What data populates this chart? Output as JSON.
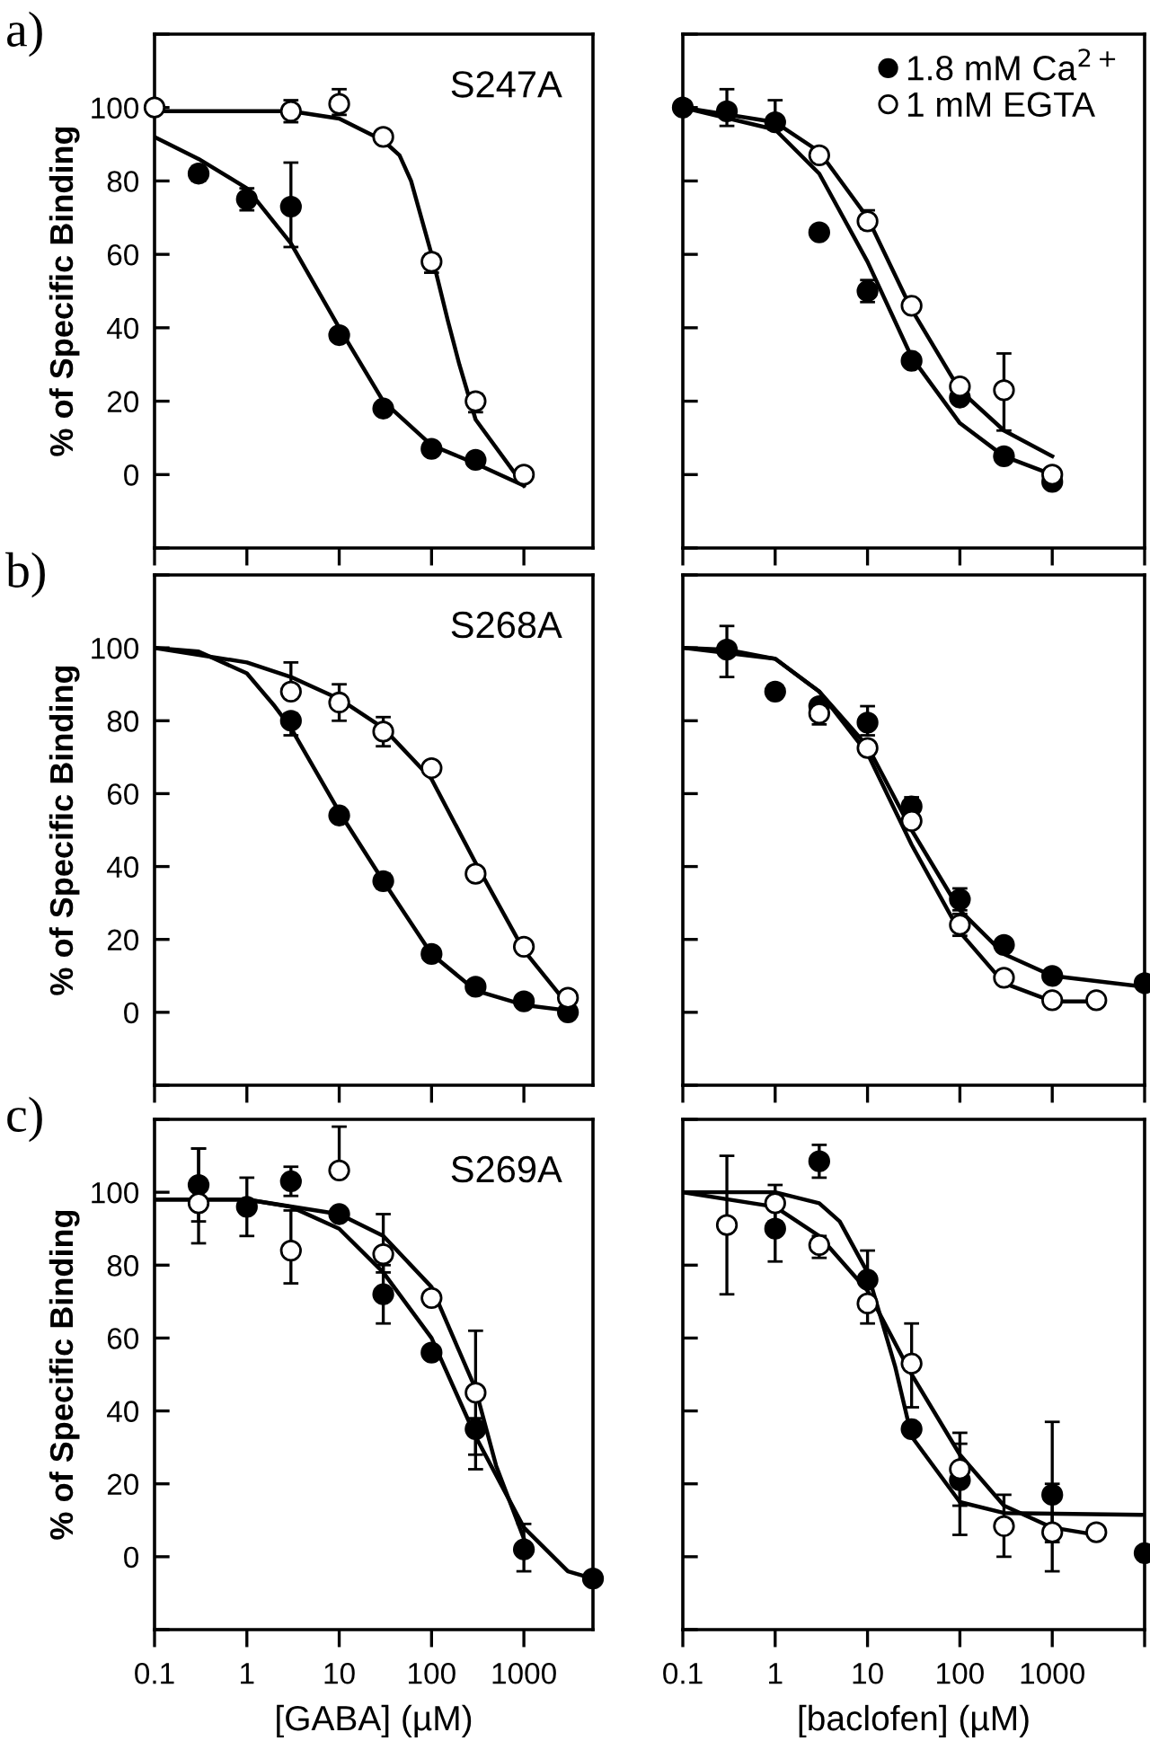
{
  "chart_data": [
    {
      "type": "scatter",
      "title": "S247A",
      "ylabel": "% of Specific Binding",
      "annotations": [
        "a)"
      ],
      "log": "x",
      "tick_labels": "y",
      "xlim": [
        0.1,
        5600
      ],
      "xticks": [
        {
          "value": 0.1,
          "label": null
        },
        {
          "value": 1,
          "label": null
        },
        {
          "value": 10,
          "label": null
        },
        {
          "value": 100,
          "label": null
        },
        {
          "value": 1000,
          "label": null
        }
      ],
      "ylim": [
        -20,
        120
      ],
      "yticks": [
        {
          "value": -20,
          "label": null
        },
        0,
        20,
        40,
        60,
        80,
        100,
        {
          "value": 120,
          "label": null
        }
      ],
      "series": [
        {
          "type": "line",
          "color": "#000000",
          "x": [
            0.1,
            0.3,
            1,
            3,
            10,
            30,
            100,
            300,
            1000
          ],
          "values": [
            92,
            86,
            78,
            63,
            40,
            20,
            8,
            3,
            -3
          ]
        },
        {
          "type": "line",
          "color": "#000000",
          "x": [
            0.1,
            1,
            3,
            10,
            30,
            45,
            60,
            100,
            150,
            200,
            300,
            1000
          ],
          "values": [
            99,
            99,
            99,
            97,
            91,
            87,
            80,
            60,
            42,
            30,
            15,
            -3
          ]
        },
        {
          "marker": "circle",
          "color": "#000000",
          "x": [
            0.3,
            1,
            3,
            10,
            30,
            100,
            300
          ],
          "values": [
            82,
            75,
            73,
            38,
            18,
            7,
            4
          ],
          "errors": [
            [
              80,
              84
            ],
            [
              72,
              78
            ],
            [
              62,
              85
            ],
            null,
            null,
            null,
            null
          ]
        },
        {
          "marker": "circle",
          "color": "#ffffff",
          "x": [
            0.1,
            3,
            10,
            30,
            100,
            300,
            1000
          ],
          "values": [
            100,
            99,
            101,
            92,
            58,
            20,
            0
          ],
          "errors": [
            null,
            [
              96,
              102
            ],
            [
              98,
              105
            ],
            null,
            [
              55,
              60
            ],
            [
              17,
              22
            ],
            null
          ]
        }
      ]
    },
    {
      "type": "scatter",
      "legend": "top right",
      "log": "x",
      "tick_labels": false,
      "xlim": [
        0.1,
        10000
      ],
      "xticks": [
        {
          "value": 0.1,
          "label": null
        },
        {
          "value": 1,
          "label": null
        },
        {
          "value": 10,
          "label": null
        },
        {
          "value": 100,
          "label": null
        },
        {
          "value": 1000,
          "label": null
        },
        {
          "value": 10000,
          "label": null
        }
      ],
      "ylim": [
        -20,
        120
      ],
      "yticks": [
        {
          "value": -20,
          "label": null
        },
        {
          "value": 0,
          "label": null
        },
        {
          "value": 20,
          "label": null
        },
        {
          "value": 40,
          "label": null
        },
        {
          "value": 60,
          "label": null
        },
        {
          "value": 80,
          "label": null
        },
        {
          "value": 100,
          "label": null
        },
        {
          "value": 120,
          "label": null
        }
      ],
      "series": [
        {
          "type": "line",
          "color": "#000000",
          "x": [
            0.1,
            1,
            3,
            10,
            30,
            100,
            300,
            1000
          ],
          "values": [
            100,
            94,
            82,
            58,
            32,
            14,
            5,
            0
          ]
        },
        {
          "type": "line",
          "color": "#000000",
          "x": [
            0.1,
            1,
            3,
            10,
            30,
            100,
            300,
            1000
          ],
          "values": [
            100,
            96,
            88,
            70,
            45,
            23,
            12,
            5
          ]
        },
        {
          "marker": "circle",
          "name": "1.8 mM Ca$^{2+}$",
          "color": "#000000",
          "x": [
            0.1,
            0.3,
            1,
            3,
            10,
            30,
            100,
            300,
            1000
          ],
          "values": [
            100,
            99,
            96,
            66,
            50,
            31,
            21,
            5,
            -2
          ],
          "errors": [
            null,
            [
              95,
              105
            ],
            [
              94,
              102
            ],
            null,
            [
              47,
              53
            ],
            null,
            null,
            null,
            null
          ]
        },
        {
          "marker": "circle",
          "name": "1 mM EGTA",
          "color": "#ffffff",
          "x": [
            3,
            10,
            30,
            100,
            300,
            1000
          ],
          "values": [
            87,
            69,
            46,
            24,
            23,
            0
          ],
          "errors": [
            null,
            [
              67,
              72
            ],
            null,
            null,
            [
              12,
              33
            ],
            null
          ]
        }
      ]
    },
    {
      "type": "scatter",
      "title": "S268A",
      "ylabel": "% of Specific Binding",
      "annotations": [
        "b)"
      ],
      "log": "x",
      "tick_labels": "y",
      "xlim": [
        0.1,
        5600
      ],
      "xticks": [
        {
          "value": 0.1,
          "label": null
        },
        {
          "value": 1,
          "label": null
        },
        {
          "value": 10,
          "label": null
        },
        {
          "value": 100,
          "label": null
        },
        {
          "value": 1000,
          "label": null
        }
      ],
      "ylim": [
        -20,
        120
      ],
      "yticks": [
        {
          "value": -20,
          "label": null
        },
        0,
        20,
        40,
        60,
        80,
        100,
        {
          "value": 120,
          "label": null
        }
      ],
      "series": [
        {
          "type": "line",
          "color": "#000000",
          "x": [
            0.1,
            0.3,
            1,
            2,
            3,
            10,
            30,
            100,
            300,
            1000,
            3000
          ],
          "values": [
            100,
            99,
            93,
            84,
            78,
            55,
            36,
            16,
            6,
            2,
            0.5
          ]
        },
        {
          "type": "line",
          "color": "#000000",
          "x": [
            0.1,
            1,
            3,
            10,
            30,
            100,
            300,
            1000,
            3000
          ],
          "values": [
            100,
            96,
            92,
            86,
            78,
            64,
            41,
            17,
            2
          ]
        },
        {
          "marker": "circle",
          "color": "#000000",
          "x": [
            3,
            10,
            30,
            100,
            300,
            1000,
            3000
          ],
          "values": [
            80,
            54,
            36,
            16,
            7,
            3,
            0
          ],
          "errors": [
            [
              76,
              82
            ],
            null,
            [
              34,
              38
            ],
            null,
            null,
            null,
            null
          ]
        },
        {
          "marker": "circle",
          "color": "#ffffff",
          "x": [
            3,
            10,
            30,
            100,
            300,
            1000,
            3000
          ],
          "values": [
            88,
            85,
            77,
            67,
            38,
            18,
            4
          ],
          "errors": [
            [
              88,
              96
            ],
            [
              80,
              90
            ],
            [
              73,
              81
            ],
            null,
            null,
            null,
            null
          ]
        }
      ]
    },
    {
      "type": "scatter",
      "log": "x",
      "tick_labels": false,
      "xlim": [
        0.1,
        10000
      ],
      "xticks": [
        {
          "value": 0.1,
          "label": null
        },
        {
          "value": 1,
          "label": null
        },
        {
          "value": 10,
          "label": null
        },
        {
          "value": 100,
          "label": null
        },
        {
          "value": 1000,
          "label": null
        },
        {
          "value": 10000,
          "label": null
        }
      ],
      "ylim": [
        -20,
        120
      ],
      "yticks": [
        {
          "value": -20,
          "label": null
        },
        {
          "value": 0,
          "label": null
        },
        {
          "value": 20,
          "label": null
        },
        {
          "value": 40,
          "label": null
        },
        {
          "value": 60,
          "label": null
        },
        {
          "value": 80,
          "label": null
        },
        {
          "value": 100,
          "label": null
        },
        {
          "value": 120,
          "label": null
        }
      ],
      "series": [
        {
          "type": "line",
          "color": "#000000",
          "x": [
            0.1,
            0.3,
            1,
            3,
            10,
            30,
            100,
            300,
            1000,
            10000
          ],
          "values": [
            100,
            99.5,
            97,
            88,
            73,
            50,
            28,
            16,
            10,
            7
          ]
        },
        {
          "type": "line",
          "color": "#000000",
          "x": [
            0.1,
            1,
            3,
            10,
            30,
            100,
            300,
            1000,
            3000
          ],
          "values": [
            100,
            97,
            88,
            71,
            46,
            22,
            8,
            3,
            3
          ]
        },
        {
          "marker": "circle",
          "color": "#000000",
          "x": [
            0.3,
            1,
            3,
            10,
            30,
            100,
            300,
            1000,
            10000
          ],
          "values": [
            99.5,
            88,
            84,
            79.5,
            56.5,
            31,
            18.5,
            10,
            8
          ],
          "errors": [
            [
              92,
              106
            ],
            null,
            null,
            [
              76,
              84
            ],
            [
              54,
              59
            ],
            [
              28,
              34
            ],
            null,
            null,
            null
          ]
        },
        {
          "marker": "circle",
          "color": "#ffffff",
          "x": [
            3,
            10,
            30,
            100,
            300,
            1000,
            3000
          ],
          "values": [
            82,
            72.5,
            52.5,
            24,
            9.5,
            3.3,
            3.3
          ],
          "errors": [
            [
              79,
              85
            ],
            null,
            null,
            [
              21,
              27
            ],
            null,
            null,
            null
          ]
        }
      ]
    },
    {
      "type": "scatter",
      "title": "S269A",
      "xlabel": "[GABA] (µM)",
      "ylabel": "% of Specific Binding",
      "annotations": [
        "c)"
      ],
      "log": "x",
      "xlim": [
        0.1,
        5600
      ],
      "xticks": [
        0.1,
        1,
        10,
        100,
        1000
      ],
      "ylim": [
        -20,
        120
      ],
      "yticks": [
        {
          "value": -20,
          "label": null
        },
        0,
        20,
        40,
        60,
        80,
        100,
        {
          "value": 120,
          "label": null
        }
      ],
      "series": [
        {
          "type": "line",
          "color": "#000000",
          "x": [
            0.1,
            1,
            3,
            10,
            30,
            100,
            300,
            1000,
            3000,
            5600
          ],
          "values": [
            98,
            98,
            96,
            90,
            78,
            60,
            33,
            8,
            -4,
            -6
          ]
        },
        {
          "type": "line",
          "color": "#000000",
          "x": [
            0.1,
            1,
            10,
            30,
            100,
            300,
            500,
            1000
          ],
          "values": [
            98,
            98,
            94,
            88,
            74,
            46,
            25,
            5
          ]
        },
        {
          "marker": "circle",
          "color": "#000000",
          "x": [
            0.3,
            1,
            3,
            10,
            30,
            100,
            300,
            1000,
            5600
          ],
          "values": [
            102,
            96,
            103,
            94,
            72,
            56,
            35,
            2,
            -6
          ],
          "errors": [
            [
              92,
              112
            ],
            [
              88,
              104
            ],
            [
              99,
              107
            ],
            null,
            [
              64,
              80
            ],
            null,
            [
              24,
              38
            ],
            [
              -4,
              9
            ],
            null
          ]
        },
        {
          "marker": "circle",
          "color": "#ffffff",
          "x": [
            0.3,
            3,
            10,
            30,
            100,
            300
          ],
          "values": [
            97,
            84,
            106,
            83,
            71,
            45
          ],
          "errors": [
            [
              86,
              112
            ],
            [
              75,
              95
            ],
            [
              106,
              118
            ],
            [
              78,
              94
            ],
            null,
            [
              28,
              62
            ]
          ]
        }
      ]
    },
    {
      "type": "scatter",
      "xlabel": "[baclofen] (µM)",
      "log": "x",
      "tick_labels": "x",
      "xlim": [
        0.1,
        10000
      ],
      "xticks": [
        0.1,
        1,
        10,
        100,
        1000,
        {
          "value": 10000,
          "label": null
        }
      ],
      "ylim": [
        -20,
        120
      ],
      "yticks": [
        {
          "value": -20,
          "label": null
        },
        {
          "value": 0,
          "label": null
        },
        {
          "value": 20,
          "label": null
        },
        {
          "value": 40,
          "label": null
        },
        {
          "value": 60,
          "label": null
        },
        {
          "value": 80,
          "label": null
        },
        {
          "value": 100,
          "label": null
        },
        {
          "value": 120,
          "label": null
        }
      ],
      "series": [
        {
          "type": "line",
          "color": "#000000",
          "x": [
            0.1,
            1,
            3,
            5,
            10,
            20,
            30,
            100,
            300,
            10000
          ],
          "values": [
            100,
            100,
            97,
            92,
            78,
            52,
            33,
            15,
            12,
            11.5
          ]
        },
        {
          "type": "line",
          "color": "#000000",
          "x": [
            0.1,
            1,
            3,
            10,
            30,
            100,
            300,
            1000,
            3000
          ],
          "values": [
            100,
            96,
            88,
            73,
            50,
            28,
            14,
            8,
            6
          ]
        },
        {
          "marker": "circle",
          "color": "#000000",
          "x": [
            1,
            3,
            10,
            30,
            100,
            1000,
            10000
          ],
          "values": [
            90,
            108.5,
            76,
            35,
            21,
            17,
            1
          ],
          "errors": [
            [
              81,
              98
            ],
            [
              104,
              113
            ],
            [
              68,
              84
            ],
            null,
            [
              6,
              31
            ],
            [
              4,
              37
            ],
            null
          ]
        },
        {
          "marker": "circle",
          "color": "#ffffff",
          "x": [
            0.3,
            1,
            3,
            10,
            30,
            100,
            300,
            1000,
            3000
          ],
          "values": [
            91,
            97,
            85.5,
            69.5,
            53,
            24,
            8.4,
            6.7,
            6.7
          ],
          "errors": [
            [
              72,
              110
            ],
            [
              92,
              102
            ],
            [
              82,
              88
            ],
            [
              64,
              75
            ],
            [
              41,
              64
            ],
            [
              14,
              34
            ],
            [
              0,
              17
            ],
            [
              -4,
              20
            ],
            null
          ]
        }
      ]
    }
  ]
}
